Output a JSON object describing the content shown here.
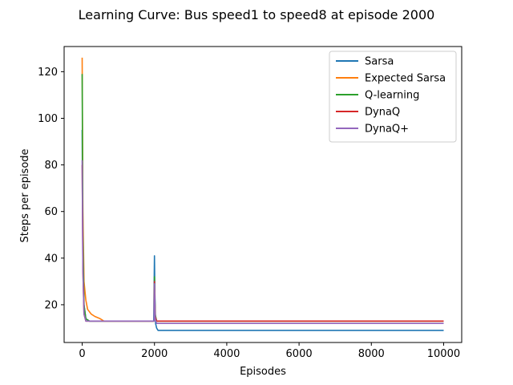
{
  "chart_data": {
    "type": "line",
    "title": "Learning Curve: Bus speed1 to speed8 at episode 2000",
    "xlabel": "Episodes",
    "ylabel": "Steps per episode",
    "xlim": [
      -500,
      10500
    ],
    "ylim": [
      3.8,
      130.8
    ],
    "xticks": [
      0,
      2000,
      4000,
      6000,
      8000,
      10000
    ],
    "xtick_labels": [
      "0",
      "2000",
      "4000",
      "6000",
      "8000",
      "10000"
    ],
    "yticks": [
      20,
      40,
      60,
      80,
      100,
      120
    ],
    "ytick_labels": [
      "20",
      "40",
      "60",
      "80",
      "100",
      "120"
    ],
    "grid": false,
    "legend_position": "upper right",
    "series": [
      {
        "name": "Sarsa",
        "color": "#1f77b4",
        "points": [
          [
            0,
            95
          ],
          [
            20,
            40
          ],
          [
            50,
            20
          ],
          [
            100,
            14
          ],
          [
            200,
            13
          ],
          [
            1980,
            13
          ],
          [
            2000,
            41
          ],
          [
            2010,
            25
          ],
          [
            2030,
            12
          ],
          [
            2060,
            10
          ],
          [
            2100,
            9
          ],
          [
            10000,
            9
          ]
        ]
      },
      {
        "name": "Expected Sarsa",
        "color": "#ff7f0e",
        "points": [
          [
            0,
            126
          ],
          [
            20,
            60
          ],
          [
            50,
            30
          ],
          [
            100,
            22
          ],
          [
            150,
            18
          ],
          [
            250,
            16
          ],
          [
            350,
            15
          ],
          [
            500,
            14
          ],
          [
            600,
            13
          ],
          [
            1990,
            13
          ],
          [
            2000,
            28
          ],
          [
            2020,
            15
          ],
          [
            2060,
            13
          ],
          [
            10000,
            13
          ]
        ]
      },
      {
        "name": "Q-learning",
        "color": "#2ca02c",
        "points": [
          [
            0,
            119
          ],
          [
            20,
            50
          ],
          [
            50,
            20
          ],
          [
            100,
            14
          ],
          [
            200,
            13
          ],
          [
            1990,
            13
          ],
          [
            2000,
            32
          ],
          [
            2020,
            16
          ],
          [
            2060,
            13
          ],
          [
            10000,
            13
          ]
        ]
      },
      {
        "name": "DynaQ",
        "color": "#d62728",
        "points": [
          [
            0,
            80
          ],
          [
            20,
            35
          ],
          [
            50,
            16
          ],
          [
            100,
            13
          ],
          [
            1990,
            13
          ],
          [
            2000,
            30
          ],
          [
            2020,
            15
          ],
          [
            2060,
            13
          ],
          [
            10000,
            13
          ]
        ]
      },
      {
        "name": "DynaQ+",
        "color": "#9467bd",
        "points": [
          [
            0,
            82
          ],
          [
            20,
            35
          ],
          [
            50,
            16
          ],
          [
            100,
            13
          ],
          [
            1990,
            13
          ],
          [
            2000,
            29
          ],
          [
            2020,
            14
          ],
          [
            2060,
            12
          ],
          [
            10000,
            12
          ]
        ]
      }
    ]
  }
}
